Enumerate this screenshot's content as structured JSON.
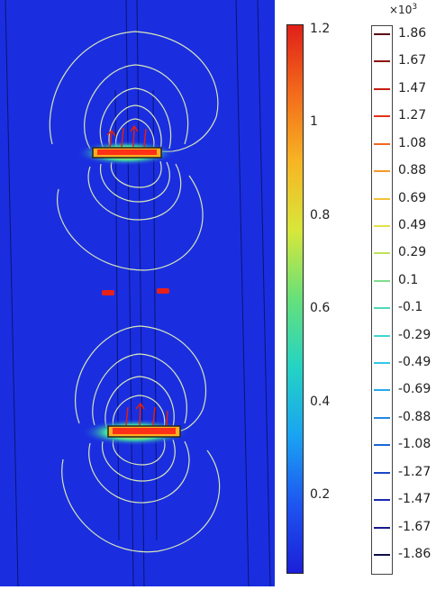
{
  "colorbar": {
    "labels": [
      "1.2",
      "1",
      "0.8",
      "0.6",
      "0.4",
      "0.2"
    ],
    "values": [
      1.2,
      1.0,
      0.8,
      0.6,
      0.4,
      0.2
    ],
    "min": 0.02,
    "max": 1.2,
    "gradient_colors": [
      "#1b1fd8",
      "#1e55f0",
      "#1aa3f2",
      "#24d3c4",
      "#66e07a",
      "#d8e73a",
      "#f7b524",
      "#f36b1b",
      "#e0201a"
    ]
  },
  "line_legend": {
    "exponent_base": "×10",
    "exponent_power": "3",
    "labels": [
      "1.86",
      "1.67",
      "1.47",
      "1.27",
      "1.08",
      "0.88",
      "0.69",
      "0.49",
      "0.29",
      "0.1",
      "-0.1",
      "-0.29",
      "-0.49",
      "-0.69",
      "-0.88",
      "-1.08",
      "-1.27",
      "-1.47",
      "-1.67",
      "-1.86"
    ],
    "tick_colors": [
      "#5a0a12",
      "#8e1410",
      "#c81e12",
      "#e2341a",
      "#ef6a22",
      "#f59a28",
      "#f2c23a",
      "#e3e04a",
      "#bfe25c",
      "#7fdc8c",
      "#4fd9b9",
      "#3ed7d6",
      "#30c8e8",
      "#28a9ea",
      "#2388e3",
      "#1f66d6",
      "#1b46c4",
      "#1b2bb0",
      "#191a8c",
      "#0d0d4a"
    ]
  },
  "plot": {
    "background_color": "#1a2ee0",
    "contour_color": "#d8e6b8",
    "arrow_color": "#e02010"
  }
}
